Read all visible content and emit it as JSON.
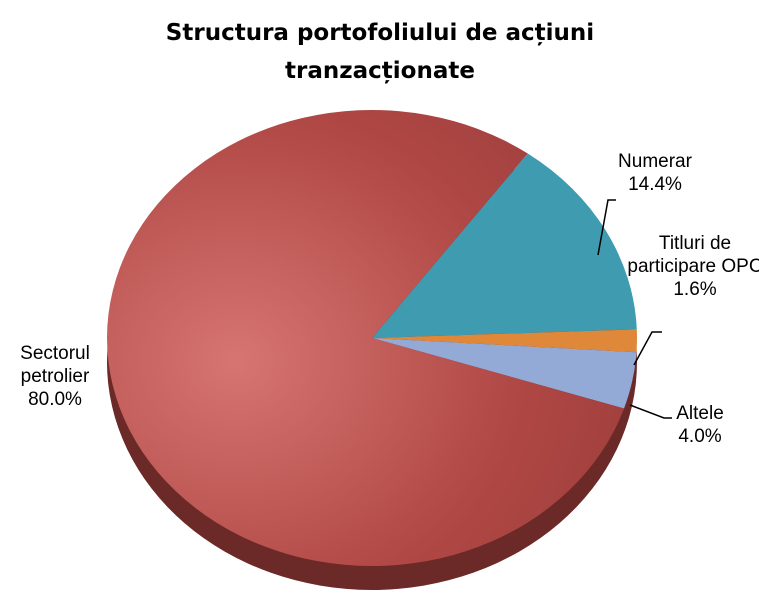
{
  "chart_data": {
    "type": "pie",
    "title": "Structura portofoliului de acțiuni tranzacționate",
    "categories": [
      "Numerar",
      "Titluri de participare OPC",
      "Altele",
      "Sectorul petrolier"
    ],
    "values": [
      14.4,
      1.6,
      4.0,
      80.0
    ],
    "value_labels": [
      "14.4%",
      "1.6%",
      "4.0%",
      "80.0%"
    ],
    "colors": [
      "#3f9bb0",
      "#e0883a",
      "#93a9d6",
      "#b04845"
    ]
  }
}
